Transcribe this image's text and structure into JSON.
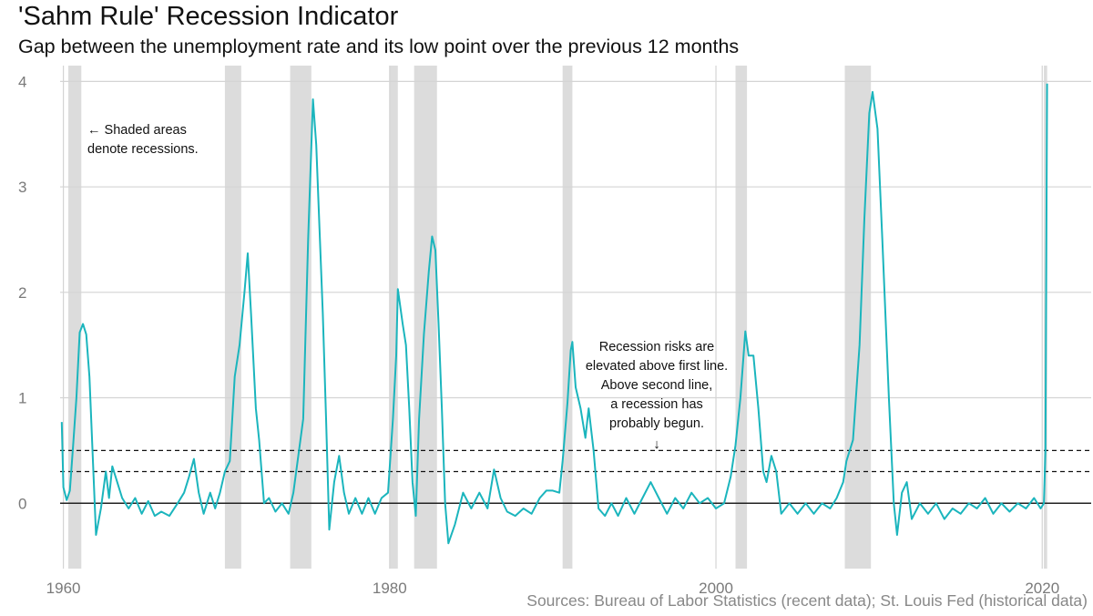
{
  "header": {
    "title": "'Sahm Rule' Recession Indicator",
    "subtitle": "Gap between the unemployment rate and its low point over the previous 12 months"
  },
  "caption": "Sources: Bureau of Labor Statistics (recent data); St. Louis Fed (historical data)",
  "annotations": {
    "shaded_note_line1": "← Shaded areas",
    "shaded_note_line2": "denote recessions.",
    "risk_line1": "Recession risks are",
    "risk_line2": "elevated above first line.",
    "risk_line3": "Above second line,",
    "risk_line4": "a recession has",
    "risk_line5": "probably begun.",
    "risk_arrow": "↓"
  },
  "colors": {
    "line": "#1bb5bd",
    "recession_shade": "#dcdcdc",
    "grid": "#d4d4d4",
    "zero_line": "#222222",
    "threshold": "#111111"
  },
  "chart_data": {
    "type": "line",
    "title": "'Sahm Rule' Recession Indicator",
    "xlabel": "",
    "ylabel": "",
    "xlim": [
      1959.8,
      2023.0
    ],
    "ylim": [
      -0.62,
      4.15
    ],
    "xticks": [
      1960,
      1980,
      2000,
      2020
    ],
    "yticks": [
      0,
      1,
      2,
      3,
      4
    ],
    "grid": true,
    "thresholds": [
      0.3,
      0.5
    ],
    "recessions": [
      [
        1960.3,
        1961.1
      ],
      [
        1969.9,
        1970.9
      ],
      [
        1973.9,
        1975.2
      ],
      [
        1980.0,
        1980.5
      ],
      [
        1981.5,
        1982.9
      ],
      [
        1990.6,
        1991.2
      ],
      [
        2001.2,
        2001.9
      ],
      [
        2007.9,
        2009.5
      ],
      [
        2020.1,
        2020.3
      ]
    ],
    "series": [
      {
        "points": [
          [
            1959.9,
            0.77
          ],
          [
            1960.0,
            0.15
          ],
          [
            1960.2,
            0.03
          ],
          [
            1960.4,
            0.12
          ],
          [
            1960.6,
            0.55
          ],
          [
            1960.8,
            1.0
          ],
          [
            1961.0,
            1.62
          ],
          [
            1961.2,
            1.7
          ],
          [
            1961.4,
            1.6
          ],
          [
            1961.6,
            1.2
          ],
          [
            1961.8,
            0.45
          ],
          [
            1962.0,
            -0.3
          ],
          [
            1962.3,
            -0.05
          ],
          [
            1962.6,
            0.3
          ],
          [
            1962.8,
            0.05
          ],
          [
            1963.0,
            0.35
          ],
          [
            1963.3,
            0.2
          ],
          [
            1963.6,
            0.05
          ],
          [
            1964.0,
            -0.05
          ],
          [
            1964.4,
            0.05
          ],
          [
            1964.8,
            -0.1
          ],
          [
            1965.2,
            0.02
          ],
          [
            1965.6,
            -0.12
          ],
          [
            1966.0,
            -0.08
          ],
          [
            1966.5,
            -0.12
          ],
          [
            1967.0,
            0.0
          ],
          [
            1967.4,
            0.1
          ],
          [
            1967.7,
            0.25
          ],
          [
            1968.0,
            0.42
          ],
          [
            1968.3,
            0.1
          ],
          [
            1968.6,
            -0.1
          ],
          [
            1969.0,
            0.1
          ],
          [
            1969.3,
            -0.05
          ],
          [
            1969.6,
            0.1
          ],
          [
            1969.9,
            0.3
          ],
          [
            1970.2,
            0.4
          ],
          [
            1970.5,
            1.2
          ],
          [
            1970.8,
            1.5
          ],
          [
            1971.1,
            2.0
          ],
          [
            1971.3,
            2.37
          ],
          [
            1971.5,
            1.8
          ],
          [
            1971.8,
            0.9
          ],
          [
            1972.0,
            0.6
          ],
          [
            1972.3,
            0.0
          ],
          [
            1972.6,
            0.05
          ],
          [
            1973.0,
            -0.08
          ],
          [
            1973.4,
            0.0
          ],
          [
            1973.8,
            -0.1
          ],
          [
            1974.1,
            0.1
          ],
          [
            1974.4,
            0.45
          ],
          [
            1974.7,
            0.8
          ],
          [
            1975.0,
            2.5
          ],
          [
            1975.3,
            3.83
          ],
          [
            1975.5,
            3.4
          ],
          [
            1975.7,
            2.6
          ],
          [
            1975.9,
            1.8
          ],
          [
            1976.1,
            0.8
          ],
          [
            1976.3,
            -0.25
          ],
          [
            1976.6,
            0.2
          ],
          [
            1976.9,
            0.45
          ],
          [
            1977.2,
            0.1
          ],
          [
            1977.5,
            -0.1
          ],
          [
            1977.9,
            0.05
          ],
          [
            1978.3,
            -0.1
          ],
          [
            1978.7,
            0.05
          ],
          [
            1979.1,
            -0.1
          ],
          [
            1979.5,
            0.05
          ],
          [
            1979.9,
            0.1
          ],
          [
            1980.2,
            0.8
          ],
          [
            1980.4,
            1.4
          ],
          [
            1980.5,
            2.03
          ],
          [
            1980.8,
            1.7
          ],
          [
            1981.0,
            1.5
          ],
          [
            1981.2,
            0.9
          ],
          [
            1981.4,
            0.2
          ],
          [
            1981.6,
            -0.12
          ],
          [
            1981.8,
            0.8
          ],
          [
            1982.1,
            1.6
          ],
          [
            1982.4,
            2.2
          ],
          [
            1982.6,
            2.53
          ],
          [
            1982.8,
            2.4
          ],
          [
            1983.0,
            1.7
          ],
          [
            1983.2,
            0.9
          ],
          [
            1983.4,
            0.0
          ],
          [
            1983.6,
            -0.38
          ],
          [
            1984.0,
            -0.2
          ],
          [
            1984.5,
            0.1
          ],
          [
            1985.0,
            -0.05
          ],
          [
            1985.5,
            0.1
          ],
          [
            1986.0,
            -0.05
          ],
          [
            1986.4,
            0.32
          ],
          [
            1986.8,
            0.05
          ],
          [
            1987.2,
            -0.08
          ],
          [
            1987.7,
            -0.12
          ],
          [
            1988.2,
            -0.05
          ],
          [
            1988.7,
            -0.1
          ],
          [
            1989.2,
            0.05
          ],
          [
            1989.6,
            0.12
          ],
          [
            1990.0,
            0.12
          ],
          [
            1990.4,
            0.1
          ],
          [
            1990.6,
            0.4
          ],
          [
            1990.9,
            0.95
          ],
          [
            1991.1,
            1.45
          ],
          [
            1991.2,
            1.53
          ],
          [
            1991.4,
            1.1
          ],
          [
            1991.7,
            0.9
          ],
          [
            1992.0,
            0.62
          ],
          [
            1992.2,
            0.9
          ],
          [
            1992.5,
            0.5
          ],
          [
            1992.8,
            -0.05
          ],
          [
            1993.2,
            -0.12
          ],
          [
            1993.6,
            0.0
          ],
          [
            1994.0,
            -0.12
          ],
          [
            1994.5,
            0.05
          ],
          [
            1995.0,
            -0.1
          ],
          [
            1995.5,
            0.05
          ],
          [
            1996.0,
            0.2
          ],
          [
            1996.5,
            0.05
          ],
          [
            1997.0,
            -0.1
          ],
          [
            1997.5,
            0.05
          ],
          [
            1998.0,
            -0.05
          ],
          [
            1998.5,
            0.1
          ],
          [
            1999.0,
            0.0
          ],
          [
            1999.5,
            0.05
          ],
          [
            2000.0,
            -0.05
          ],
          [
            2000.5,
            0.0
          ],
          [
            2000.9,
            0.25
          ],
          [
            2001.2,
            0.55
          ],
          [
            2001.5,
            1.0
          ],
          [
            2001.8,
            1.63
          ],
          [
            2002.0,
            1.4
          ],
          [
            2002.3,
            1.4
          ],
          [
            2002.6,
            0.9
          ],
          [
            2002.9,
            0.3
          ],
          [
            2003.1,
            0.2
          ],
          [
            2003.4,
            0.45
          ],
          [
            2003.7,
            0.3
          ],
          [
            2004.0,
            -0.1
          ],
          [
            2004.5,
            0.0
          ],
          [
            2005.0,
            -0.1
          ],
          [
            2005.5,
            0.0
          ],
          [
            2006.0,
            -0.1
          ],
          [
            2006.5,
            0.0
          ],
          [
            2007.0,
            -0.05
          ],
          [
            2007.4,
            0.05
          ],
          [
            2007.8,
            0.2
          ],
          [
            2008.0,
            0.4
          ],
          [
            2008.4,
            0.6
          ],
          [
            2008.8,
            1.5
          ],
          [
            2009.1,
            2.7
          ],
          [
            2009.4,
            3.7
          ],
          [
            2009.6,
            3.9
          ],
          [
            2009.9,
            3.55
          ],
          [
            2010.2,
            2.5
          ],
          [
            2010.6,
            1.0
          ],
          [
            2010.9,
            0.0
          ],
          [
            2011.1,
            -0.3
          ],
          [
            2011.4,
            0.1
          ],
          [
            2011.7,
            0.2
          ],
          [
            2012.0,
            -0.15
          ],
          [
            2012.5,
            0.0
          ],
          [
            2013.0,
            -0.1
          ],
          [
            2013.5,
            0.0
          ],
          [
            2014.0,
            -0.15
          ],
          [
            2014.5,
            -0.05
          ],
          [
            2015.0,
            -0.1
          ],
          [
            2015.5,
            0.0
          ],
          [
            2016.0,
            -0.05
          ],
          [
            2016.5,
            0.05
          ],
          [
            2017.0,
            -0.1
          ],
          [
            2017.5,
            0.0
          ],
          [
            2018.0,
            -0.08
          ],
          [
            2018.5,
            0.0
          ],
          [
            2019.0,
            -0.05
          ],
          [
            2019.5,
            0.05
          ],
          [
            2019.9,
            -0.05
          ],
          [
            2020.1,
            0.0
          ],
          [
            2020.2,
            0.5
          ],
          [
            2020.3,
            3.98
          ]
        ]
      }
    ]
  }
}
